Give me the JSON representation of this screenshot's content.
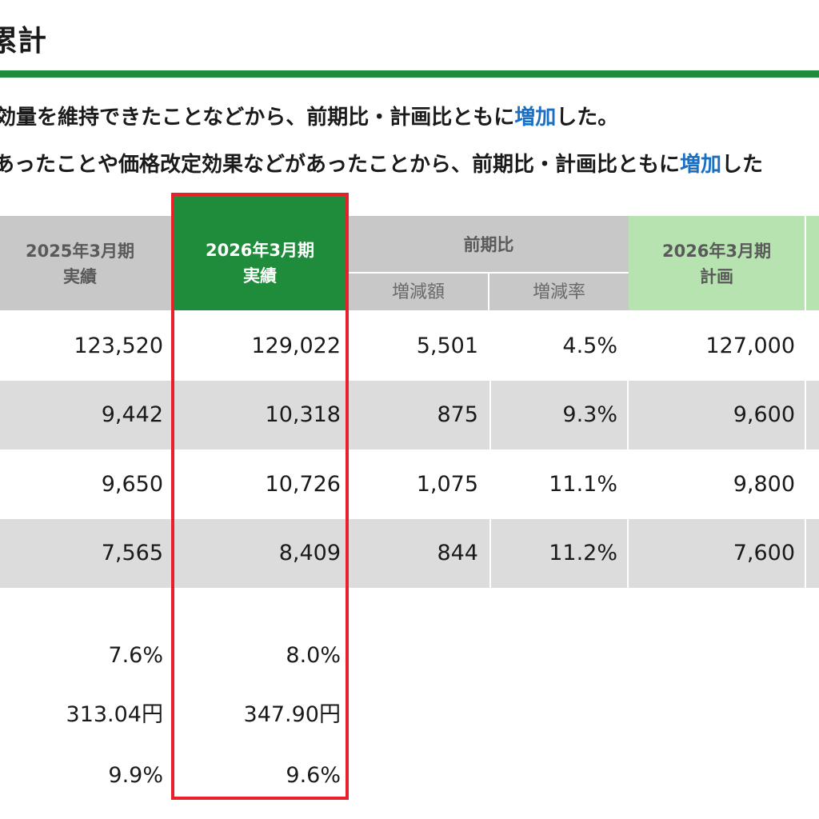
{
  "title": "累計",
  "summary": {
    "line1": {
      "pre": "効量を維持できたことなどから、前期比・計画比ともに",
      "hl": "増加",
      "post": "した。"
    },
    "line2": {
      "pre": "あったことや価格改定効果などがあったことから、前期比・計画比ともに",
      "hl": "増加",
      "post": "した"
    }
  },
  "table": {
    "headers": {
      "prev": [
        "2025年3月期",
        "実績"
      ],
      "curr": [
        "2026年3月期",
        "実績"
      ],
      "yoy": "前期比",
      "yoy_amount": "増減額",
      "yoy_rate": "増減率",
      "plan": [
        "2026年3月期",
        "計画"
      ]
    },
    "rows": [
      {
        "prev": "123,520",
        "curr": "129,022",
        "diff": "5,501",
        "rate": "4.5%",
        "plan": "127,000"
      },
      {
        "prev": "9,442",
        "curr": "10,318",
        "diff": "875",
        "rate": "9.3%",
        "plan": "9,600"
      },
      {
        "prev": "9,650",
        "curr": "10,726",
        "diff": "1,075",
        "rate": "11.1%",
        "plan": "9,800"
      },
      {
        "prev": "7,565",
        "curr": "8,409",
        "diff": "844",
        "rate": "11.2%",
        "plan": "7,600"
      }
    ],
    "extra_rows": [
      {
        "prev": "7.6%",
        "curr": "8.0%"
      },
      {
        "prev": "313.04円",
        "curr": "347.90円"
      },
      {
        "prev": "9.9%",
        "curr": "9.6%"
      }
    ]
  },
  "colors": {
    "accent_green": "#1e8c3a",
    "plan_header_green": "#b6e3b0",
    "highlight_red": "#e8202a",
    "increase_blue": "#1b6fc2"
  }
}
